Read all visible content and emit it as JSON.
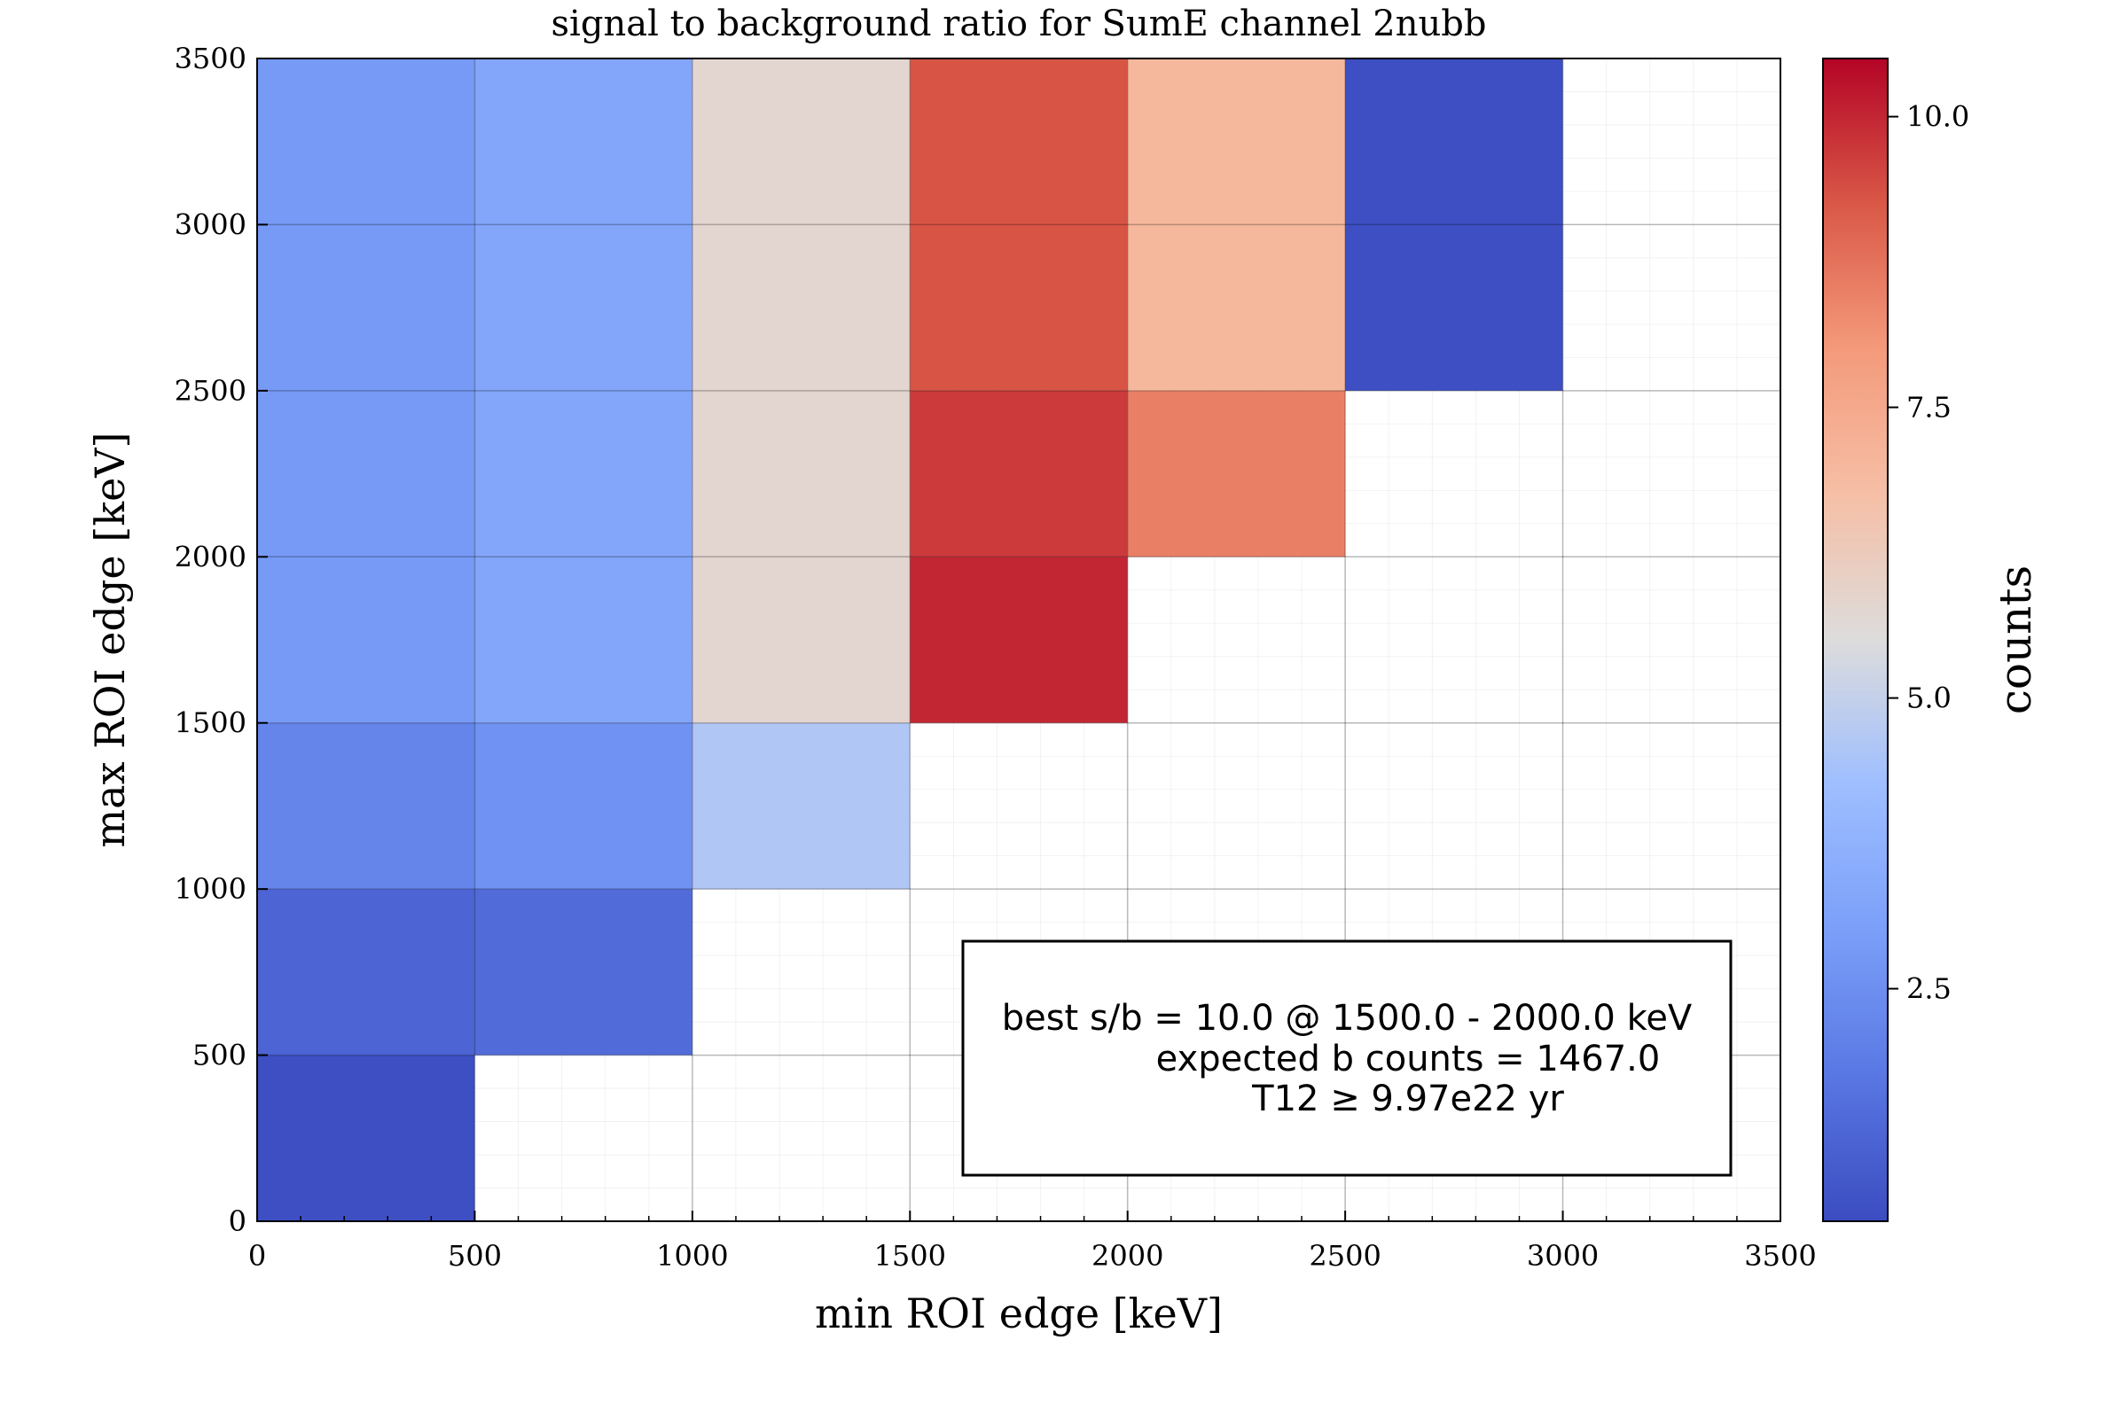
{
  "chart_data": {
    "type": "heatmap",
    "title": "signal to background ratio for SumE channel 2nubb",
    "xlabel": "min ROI edge [keV]",
    "ylabel": "max ROI edge [keV]",
    "colorbar_label": "counts",
    "xlim": [
      0,
      3500
    ],
    "ylim": [
      0,
      3500
    ],
    "x_ticks": [
      "0",
      "500",
      "1000",
      "1500",
      "2000",
      "2500",
      "3000",
      "3500"
    ],
    "y_ticks": [
      "0",
      "500",
      "1000",
      "1500",
      "2000",
      "2500",
      "3000",
      "3500"
    ],
    "colorbar_ticks": [
      "2.5",
      "5.0",
      "7.5",
      "10.0"
    ],
    "colorbar_range": [
      0.5,
      10.5
    ],
    "colormap": "coolwarm",
    "grid": true,
    "cells": [
      {
        "xmin": 0,
        "xmax": 500,
        "ymin": 0,
        "ymax": 500,
        "value": 0.6
      },
      {
        "xmin": 0,
        "xmax": 500,
        "ymin": 500,
        "ymax": 1000,
        "value": 1.2
      },
      {
        "xmin": 500,
        "xmax": 1000,
        "ymin": 500,
        "ymax": 1000,
        "value": 1.4
      },
      {
        "xmin": 0,
        "xmax": 500,
        "ymin": 1000,
        "ymax": 1500,
        "value": 2.2
      },
      {
        "xmin": 500,
        "xmax": 1000,
        "ymin": 1000,
        "ymax": 1500,
        "value": 2.6
      },
      {
        "xmin": 1000,
        "xmax": 1500,
        "ymin": 1000,
        "ymax": 1500,
        "value": 4.6
      },
      {
        "xmin": 0,
        "xmax": 500,
        "ymin": 1500,
        "ymax": 3500,
        "value": 2.85
      },
      {
        "xmin": 500,
        "xmax": 1000,
        "ymin": 1500,
        "ymax": 3500,
        "value": 3.3
      },
      {
        "xmin": 1000,
        "xmax": 1500,
        "ymin": 1500,
        "ymax": 3500,
        "value": 5.8
      },
      {
        "xmin": 1500,
        "xmax": 2000,
        "ymin": 1500,
        "ymax": 2000,
        "value": 10.0
      },
      {
        "xmin": 1500,
        "xmax": 2000,
        "ymin": 2000,
        "ymax": 2500,
        "value": 9.7
      },
      {
        "xmin": 1500,
        "xmax": 2000,
        "ymin": 2500,
        "ymax": 3500,
        "value": 9.3
      },
      {
        "xmin": 2000,
        "xmax": 2500,
        "ymin": 2000,
        "ymax": 2500,
        "value": 8.5
      },
      {
        "xmin": 2000,
        "xmax": 2500,
        "ymin": 2500,
        "ymax": 3500,
        "value": 7.0
      },
      {
        "xmin": 2500,
        "xmax": 3000,
        "ymin": 2500,
        "ymax": 3500,
        "value": 0.6
      }
    ],
    "annotation": [
      "best s/b = 10.0 @ 1500.0 - 2000.0 keV",
      "expected b counts = 1467.0",
      "T12 ≥  9.97e22 yr"
    ]
  }
}
